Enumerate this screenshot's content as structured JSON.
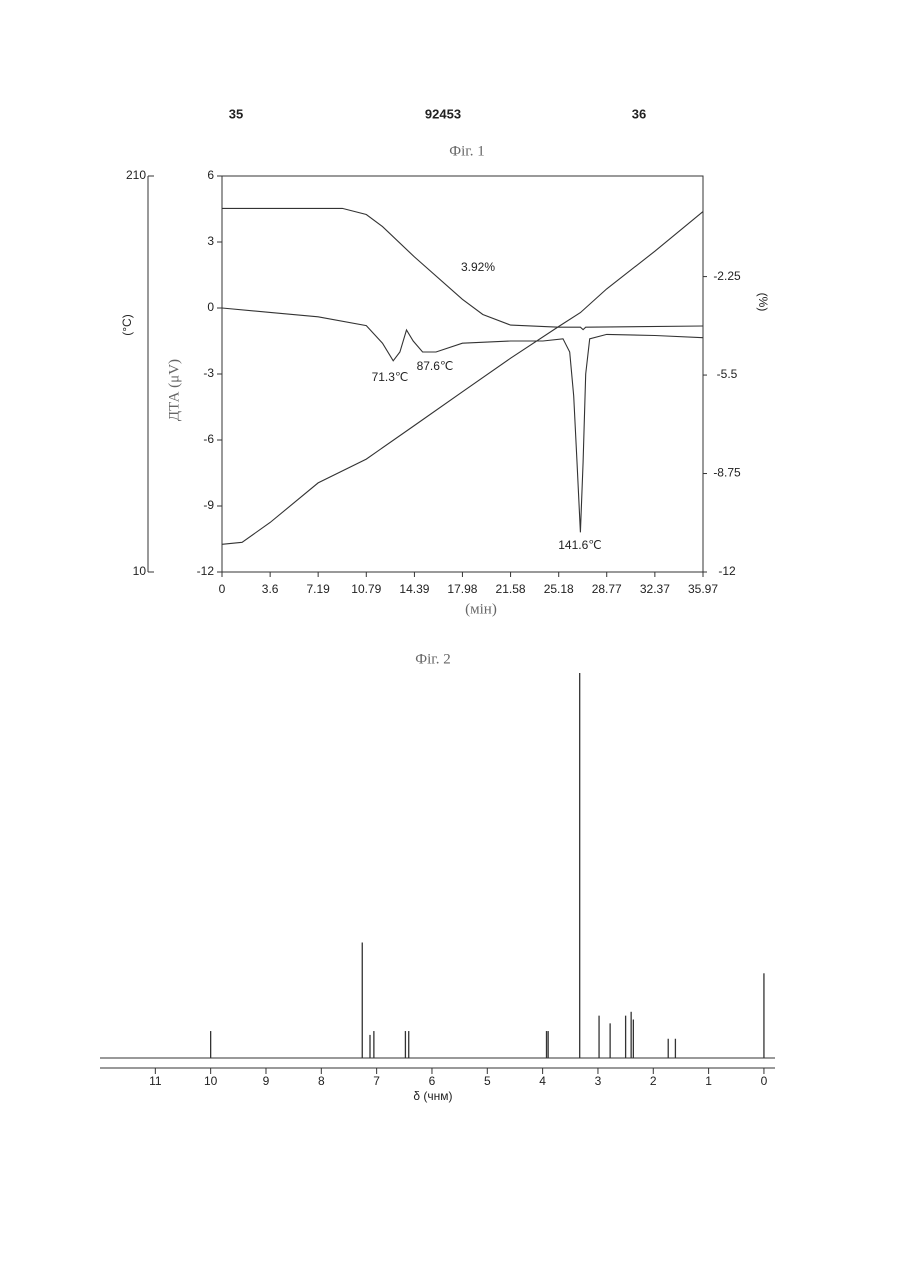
{
  "header": {
    "left": "35",
    "center": "92453",
    "right": "36"
  },
  "chart_data": [
    {
      "type": "line",
      "title": "Фіг. 1",
      "x_label": "(мін)",
      "y_label": "ДТА (μV)",
      "y2_label": "(%)",
      "y3_label": "(°C)",
      "xlim": [
        0,
        35.97
      ],
      "xticks": [
        0,
        3.6,
        7.19,
        10.79,
        14.39,
        17.98,
        21.58,
        25.18,
        28.77,
        32.37,
        35.97
      ],
      "ylim": [
        -12,
        6
      ],
      "yticks": [
        -12,
        -9,
        -6,
        -3,
        0,
        3,
        6
      ],
      "y2lim": [
        -12,
        1.07
      ],
      "y2ticks": [
        -12,
        -8.75,
        -5.5,
        -2.25
      ],
      "y3lim": [
        10,
        210
      ],
      "y3ticks": [
        10,
        210
      ],
      "annotations": [
        "3.92%",
        "71.3℃",
        "87.6℃",
        "141.6℃"
      ],
      "series": [
        {
          "color": "#333",
          "x": [
            0,
            3.6,
            7.19,
            10.79,
            12.0,
            12.8,
            13.3,
            13.8,
            14.3,
            15.0,
            16.0,
            17.98,
            21.58,
            24.0,
            25.5,
            26.0,
            26.3,
            26.55,
            26.8,
            27.0,
            27.2,
            27.5,
            28.77,
            32.37,
            35.97
          ],
          "values": [
            0,
            -0.2,
            -0.4,
            -0.8,
            -1.6,
            -2.4,
            -2.0,
            -1.0,
            -1.5,
            -2.0,
            -2.0,
            -1.6,
            -1.5,
            -1.5,
            -1.4,
            -2.0,
            -4,
            -7,
            -10.2,
            -7,
            -3,
            -1.4,
            -1.2,
            -1.25,
            -1.35
          ]
        },
        {
          "color": "#333",
          "axis": "y2",
          "x": [
            0,
            9.0,
            10.79,
            12.0,
            14.39,
            17.98,
            19.5,
            21.58,
            25.18,
            26.8,
            27.0,
            27.2,
            35.97
          ],
          "values": [
            0,
            0,
            -0.2,
            -0.6,
            -1.6,
            -3.0,
            -3.5,
            -3.85,
            -3.92,
            -3.92,
            -4.0,
            -3.92,
            -3.88
          ]
        },
        {
          "color": "#333",
          "axis": "y3",
          "x": [
            0,
            1.5,
            3.6,
            7.19,
            10.79,
            14.39,
            17.98,
            21.58,
            25.18,
            26.8,
            28.77,
            32.37,
            35.97
          ],
          "values": [
            24,
            25,
            35,
            55,
            67,
            84,
            101,
            118,
            134,
            141,
            153,
            172,
            192
          ]
        }
      ]
    },
    {
      "type": "spectrum",
      "title": "Фіг. 2",
      "x_label": "δ (чнм)",
      "xlim": [
        12,
        -0.2
      ],
      "xticks": [
        11,
        10,
        9,
        8,
        7,
        6,
        5,
        4,
        3,
        2,
        1,
        0
      ],
      "ylim": [
        0,
        100
      ],
      "x": [
        10.0,
        7.26,
        7.12,
        7.05,
        6.48,
        6.42,
        3.93,
        3.9,
        3.33,
        2.98,
        2.78,
        2.5,
        2.4,
        2.36,
        1.73,
        1.6,
        0.0
      ],
      "values": [
        7,
        30,
        6,
        7,
        7,
        7,
        7,
        7,
        100,
        11,
        9,
        11,
        12,
        10,
        5,
        5,
        22
      ],
      "color": "#333"
    }
  ]
}
